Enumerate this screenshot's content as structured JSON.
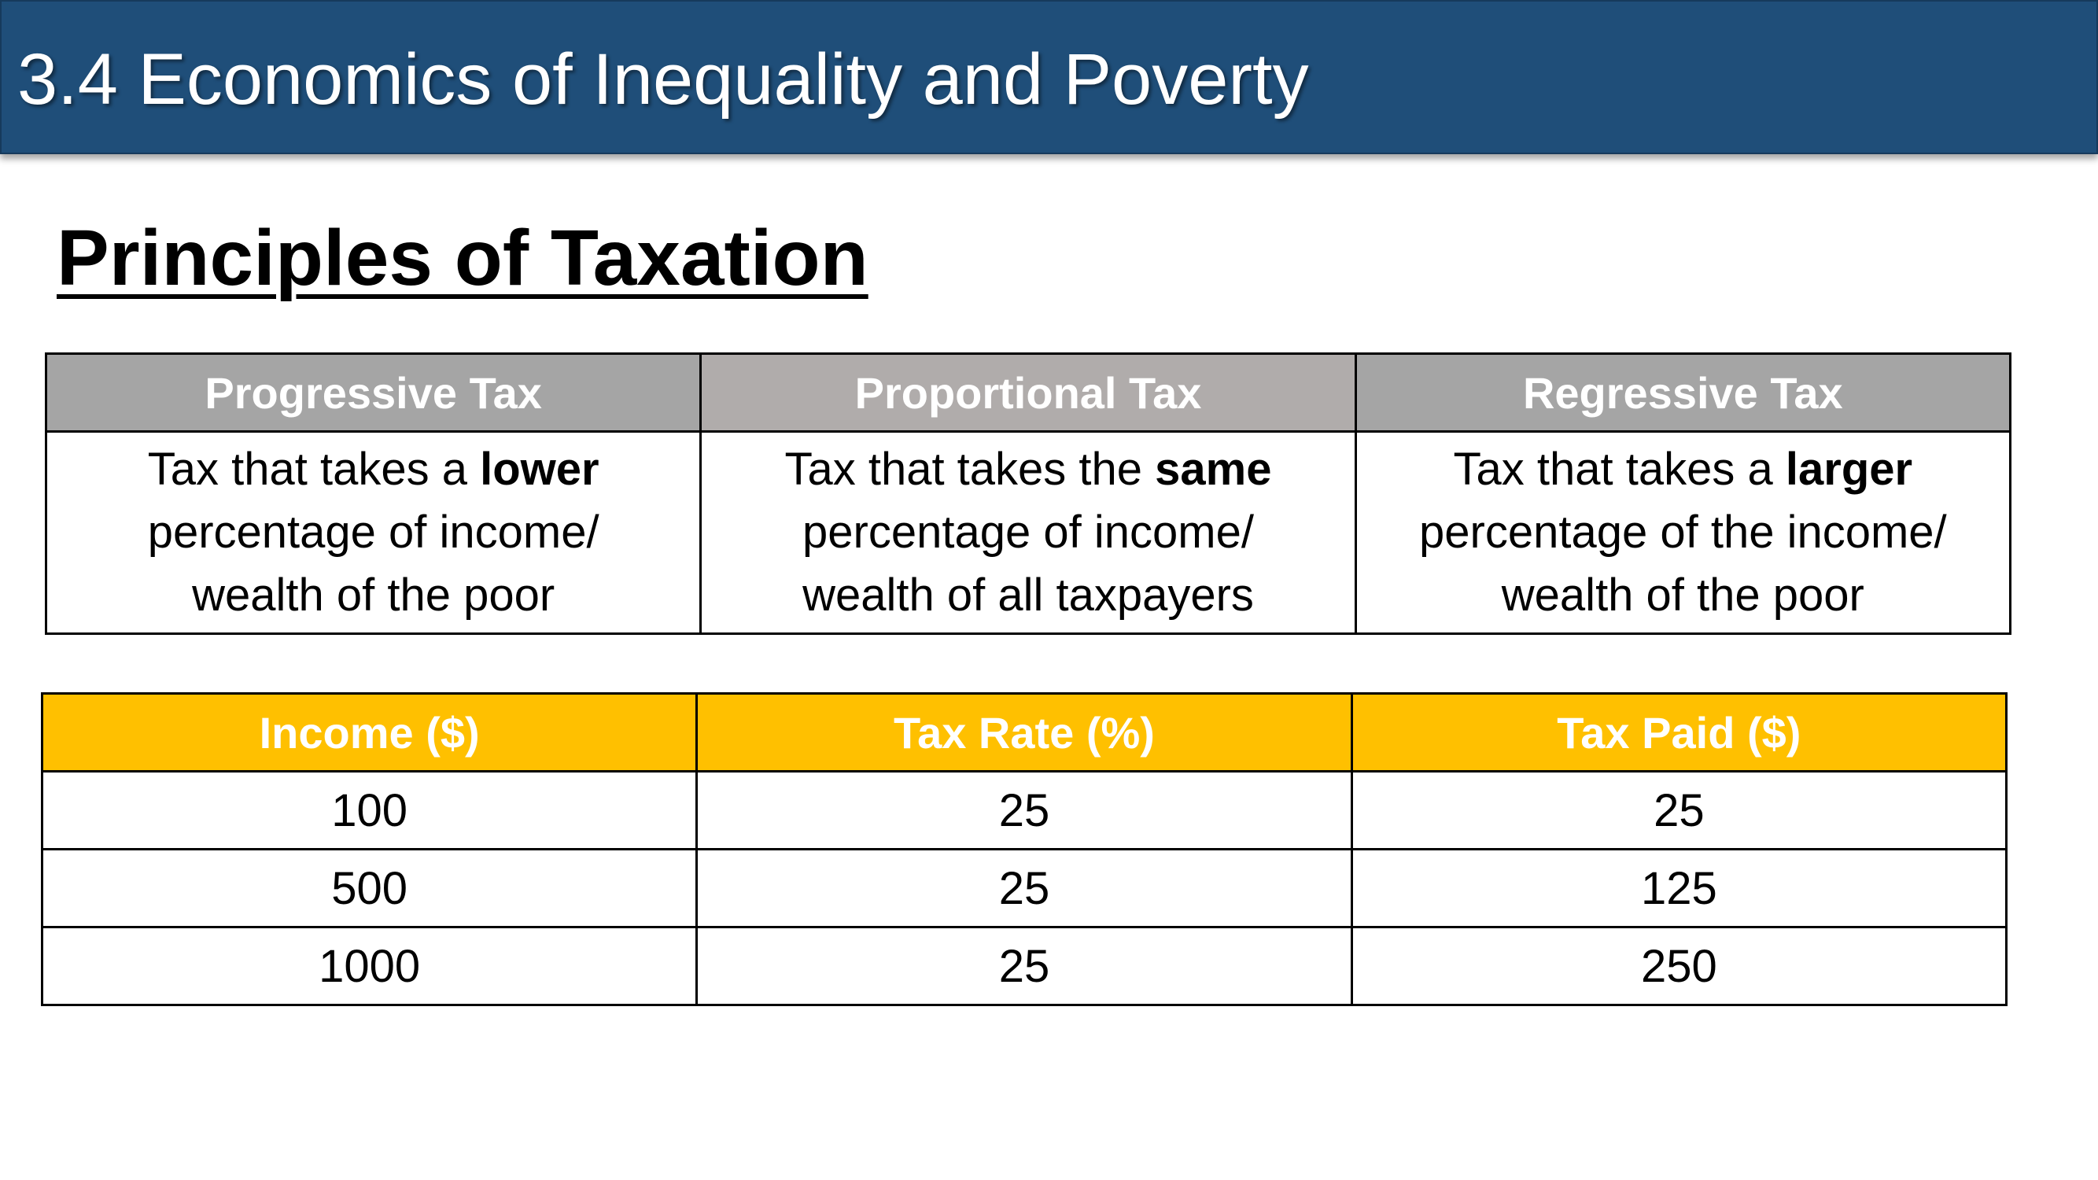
{
  "header": {
    "title": "3.4 Economics of Inequality and Poverty"
  },
  "subtitle": "Principles of Taxation",
  "definitions_table": {
    "columns": [
      {
        "heading": "Progressive Tax",
        "line1_pre": "Tax that takes a ",
        "line1_bold": "lower",
        "line2": "percentage of income/",
        "line3": "wealth of the poor"
      },
      {
        "heading": "Proportional Tax",
        "line1_pre": "Tax that takes the ",
        "line1_bold": "same",
        "line2": "percentage of income/",
        "line3": "wealth of all taxpayers"
      },
      {
        "heading": "Regressive Tax",
        "line1_pre": "Tax that takes a ",
        "line1_bold": "larger",
        "line2": "percentage of the income/",
        "line3": "wealth of the poor"
      }
    ],
    "header_colors": [
      "#a5a5a5",
      "#b0acab",
      "#a5a5a5"
    ]
  },
  "data_table": {
    "headers": [
      "Income ($)",
      "Tax Rate (%)",
      "Tax Paid ($)"
    ],
    "rows": [
      [
        "100",
        "25",
        "25"
      ],
      [
        "500",
        "25",
        "125"
      ],
      [
        "1000",
        "25",
        "250"
      ]
    ],
    "header_color": "#ffc000"
  },
  "colors": {
    "title_bar": "#1f4e79",
    "title_text": "#ffffff"
  }
}
